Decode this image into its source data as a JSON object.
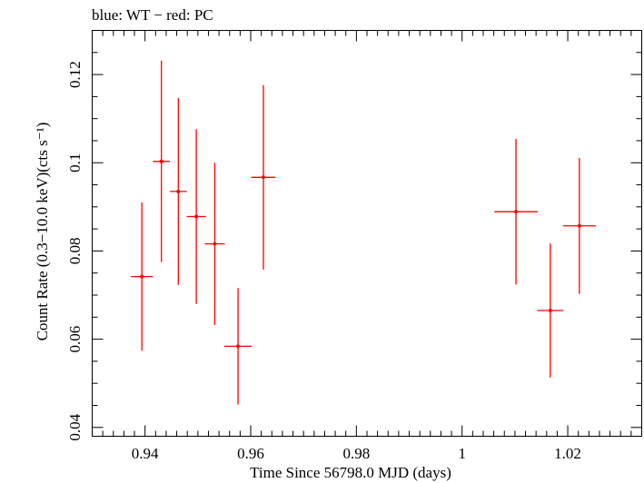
{
  "header": {
    "title": "blue: WT − red: PC"
  },
  "chart_data": {
    "type": "scatter",
    "title": "blue: WT − red: PC",
    "xlabel": "Time Since 56798.0 MJD (days)",
    "ylabel": "Count Rate (0.3−10.0 keV)(cts s⁻¹)",
    "xlim": [
      0.93,
      1.034
    ],
    "ylim": [
      0.038,
      0.13
    ],
    "x_ticks": [
      0.94,
      0.96,
      0.98,
      1.0,
      1.02
    ],
    "x_tick_labels": [
      "0.94",
      "0.96",
      "0.98",
      "1",
      "1.02"
    ],
    "y_ticks": [
      0.04,
      0.06,
      0.08,
      0.1,
      0.12
    ],
    "y_tick_labels": [
      "0.04",
      "0.06",
      "0.08",
      "0.1",
      "0.12"
    ],
    "grid": false,
    "series": [
      {
        "color": "#ff0000",
        "points": [
          {
            "x": 0.9394,
            "xerr": 0.0021,
            "y": 0.0742,
            "yerr_lo": 0.0168,
            "yerr_hi": 0.0168
          },
          {
            "x": 0.9431,
            "xerr": 0.0016,
            "y": 0.1003,
            "yerr_lo": 0.0228,
            "yerr_hi": 0.0228
          },
          {
            "x": 0.9463,
            "xerr": 0.0016,
            "y": 0.0935,
            "yerr_lo": 0.0212,
            "yerr_hi": 0.0212
          },
          {
            "x": 0.9497,
            "xerr": 0.0018,
            "y": 0.0878,
            "yerr_lo": 0.0198,
            "yerr_hi": 0.0198
          },
          {
            "x": 0.9532,
            "xerr": 0.0019,
            "y": 0.0816,
            "yerr_lo": 0.0184,
            "yerr_hi": 0.0184
          },
          {
            "x": 0.9576,
            "xerr": 0.0026,
            "y": 0.0584,
            "yerr_lo": 0.0132,
            "yerr_hi": 0.0132
          },
          {
            "x": 0.9624,
            "xerr": 0.0023,
            "y": 0.0967,
            "yerr_lo": 0.0209,
            "yerr_hi": 0.0209
          },
          {
            "x": 1.0102,
            "xerr": 0.0041,
            "y": 0.0889,
            "yerr_lo": 0.0165,
            "yerr_hi": 0.0165
          },
          {
            "x": 1.0167,
            "xerr": 0.0025,
            "y": 0.0665,
            "yerr_lo": 0.0152,
            "yerr_hi": 0.0152
          },
          {
            "x": 1.0222,
            "xerr": 0.0031,
            "y": 0.0857,
            "yerr_lo": 0.0154,
            "yerr_hi": 0.0154
          }
        ]
      }
    ]
  }
}
